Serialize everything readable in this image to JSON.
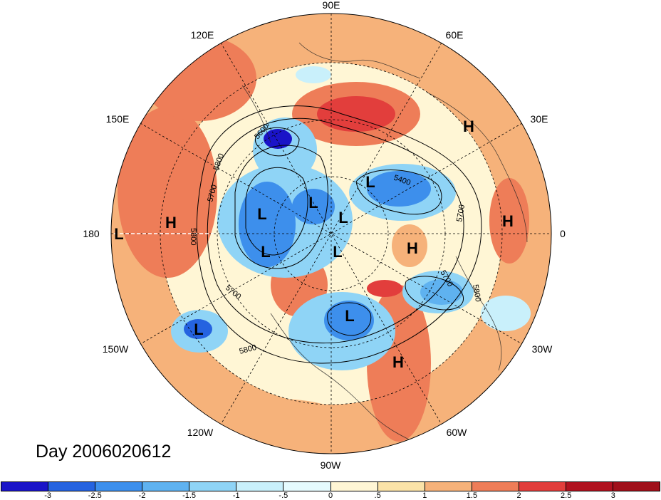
{
  "title": "Day 2006020612",
  "longitude_labels": {
    "deg90E": "90E",
    "deg60E": "60E",
    "deg120E": "120E",
    "deg150E": "150E",
    "deg30E": "30E",
    "deg180": "180",
    "deg0": "0",
    "deg150W": "150W",
    "deg30W": "30W",
    "deg120W": "120W",
    "deg60W": "60W",
    "deg90W": "90W"
  },
  "systems": [
    {
      "type": "H",
      "lon_lat": "near 35E, 55N"
    },
    {
      "type": "L",
      "lon_lat": "NE Pacific"
    },
    {
      "type": "H",
      "lon_lat": "N Africa"
    },
    {
      "type": "H",
      "lon_lat": "Atlantic"
    }
  ],
  "system_labels": [
    "H",
    "L",
    "H",
    "L",
    "L",
    "L",
    "L",
    "L",
    "L",
    "H",
    "L",
    "H",
    "L",
    "L",
    "H"
  ],
  "contour_labels": [
    "5600",
    "5800",
    "5700",
    "5800",
    "5700",
    "5800",
    "5700",
    "5800",
    "5400",
    "5700",
    "5800",
    "5700"
  ],
  "colorbar": {
    "tick_labels": [
      "-3",
      "-2.5",
      "-2",
      "-1.5",
      "-1",
      "-.5",
      "0",
      ".5",
      "1",
      "1.5",
      "2",
      "2.5",
      "3"
    ],
    "colors": [
      "#1a14c8",
      "#2563e0",
      "#3d8fec",
      "#5fb2f0",
      "#8fd4f6",
      "#c9f0fb",
      "#e6fbfe",
      "#fff6d5",
      "#fbe3a8",
      "#f6b27a",
      "#ee7d58",
      "#e23e3c",
      "#b0121f"
    ]
  }
}
